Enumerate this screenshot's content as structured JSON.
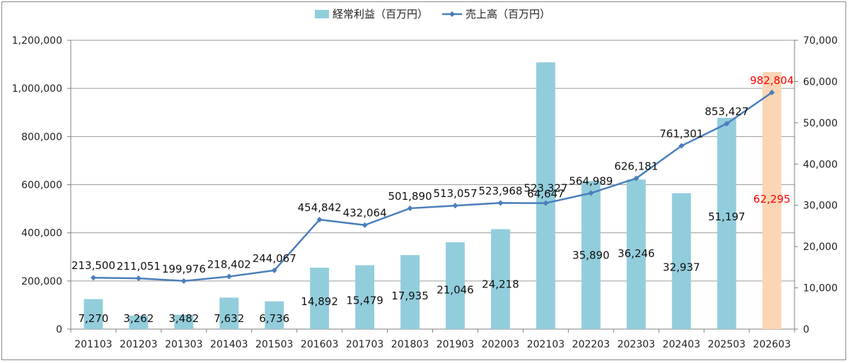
{
  "chart_data": {
    "type": "bar+line",
    "categories": [
      "201103",
      "201203",
      "201303",
      "201403",
      "201503",
      "201603",
      "201703",
      "201803",
      "201903",
      "202003",
      "202103",
      "202203",
      "202303",
      "202403",
      "202503",
      "202603"
    ],
    "series": [
      {
        "name": "経常利益（百万円）",
        "type": "bar",
        "axis": "right",
        "values": [
          7270,
          3262,
          3482,
          7632,
          6736,
          14892,
          15479,
          17935,
          21046,
          24218,
          64647,
          35890,
          36246,
          32937,
          51197,
          62295
        ],
        "color": "#92cddc",
        "highlight_color": "#fcd5b4",
        "highlight_index": 15
      },
      {
        "name": "売上高（百万円）",
        "type": "line",
        "axis": "left",
        "values": [
          213500,
          211051,
          199976,
          218402,
          244067,
          454842,
          432064,
          501890,
          513057,
          523968,
          523327,
          564989,
          626181,
          761301,
          853427,
          982804
        ],
        "color": "#4a7ebb",
        "highlight_index": 15
      }
    ],
    "bar_labels": [
      "7,270",
      "3,262",
      "3,482",
      "7,632",
      "6,736",
      "14,892",
      "15,479",
      "17,935",
      "21,046",
      "24,218",
      "64,647",
      "35,890",
      "36,246",
      "32,937",
      "51,197",
      "62,295"
    ],
    "line_labels": [
      "213,500",
      "211,051",
      "199,976",
      "218,402",
      "244,067",
      "454,842",
      "432,064",
      "501,890",
      "513,057",
      "523,968",
      "523,327",
      "564,989",
      "626,181",
      "761,301",
      "853,427",
      "982,804"
    ],
    "y_left": {
      "min": 0,
      "max": 1200000,
      "ticks": [
        "0",
        "200,000",
        "400,000",
        "600,000",
        "800,000",
        "1,000,000",
        "1,200,000"
      ]
    },
    "y_right": {
      "min": 0,
      "max": 70000,
      "ticks": [
        "0",
        "10,000",
        "20,000",
        "30,000",
        "40,000",
        "50,000",
        "60,000",
        "70,000"
      ]
    },
    "grid": true,
    "legend_position": "top",
    "label_highlight_color": "#ff0000"
  }
}
